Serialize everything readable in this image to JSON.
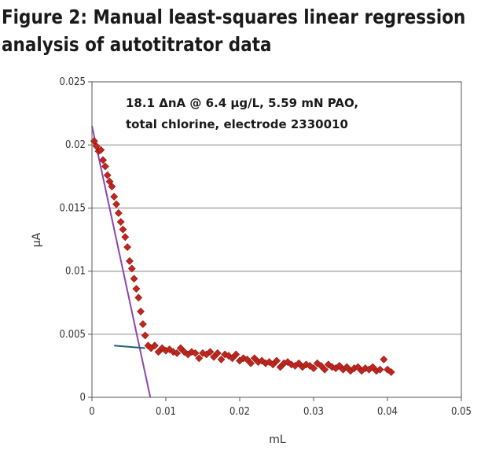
{
  "figure": {
    "title_line1": "Figure 2: Manual least-squares linear regression",
    "title_line2": "analysis of autotitrator data"
  },
  "chart_data": {
    "type": "scatter",
    "xlabel": "mL",
    "ylabel": "µA",
    "xlim": [
      0,
      0.05
    ],
    "ylim": [
      0,
      0.025
    ],
    "x_ticks": [
      "0",
      "0.01",
      "0.02",
      "0.03",
      "0.04",
      "0.05"
    ],
    "y_ticks": [
      "0",
      "0.005",
      "0.01",
      "0.015",
      "0.02",
      "0.025"
    ],
    "grid": "horizontal",
    "annotation_line1": "18.1 ΔnA @ 6.4 µg/L, 5.59 mN PAO,",
    "annotation_line2": "total chlorine, electrode 2330010",
    "colors": {
      "points": "#c0261e",
      "steep_fit": "#8e44ad",
      "flat_fit": "#1f5f7a",
      "grid": "#9a9a9a"
    },
    "series": [
      {
        "kind": "points",
        "x": [
          0.0003,
          0.0006,
          0.0009,
          0.0012,
          0.0015,
          0.0018,
          0.0021,
          0.0024,
          0.0027,
          0.003,
          0.0033,
          0.0036,
          0.0039,
          0.0042,
          0.0045,
          0.0048,
          0.0051,
          0.0054,
          0.0057,
          0.006,
          0.0063,
          0.0066,
          0.0069,
          0.0072,
          0.0076,
          0.008,
          0.0085,
          0.009,
          0.0095,
          0.01,
          0.0105,
          0.011,
          0.0115,
          0.012,
          0.0125,
          0.013,
          0.0135,
          0.014,
          0.0145,
          0.015,
          0.0155,
          0.016,
          0.0165,
          0.017,
          0.0175,
          0.018,
          0.0185,
          0.019,
          0.0195,
          0.02,
          0.0205,
          0.021,
          0.0215,
          0.022,
          0.0225,
          0.023,
          0.0235,
          0.024,
          0.0245,
          0.025,
          0.0255,
          0.026,
          0.0265,
          0.027,
          0.0275,
          0.028,
          0.0285,
          0.029,
          0.0295,
          0.03,
          0.0305,
          0.031,
          0.0315,
          0.032,
          0.0325,
          0.033,
          0.0335,
          0.034,
          0.0345,
          0.035,
          0.0355,
          0.036,
          0.0365,
          0.037,
          0.0375,
          0.038,
          0.0385,
          0.039,
          0.0395,
          0.04,
          0.0405
        ],
        "y": [
          0.0203,
          0.0199,
          0.0195,
          0.0196,
          0.0188,
          0.0183,
          0.0176,
          0.0171,
          0.0167,
          0.0159,
          0.0153,
          0.0146,
          0.0139,
          0.0133,
          0.0127,
          0.0119,
          0.0108,
          0.0102,
          0.0094,
          0.0086,
          0.0079,
          0.0068,
          0.0058,
          0.0049,
          0.0041,
          0.0039,
          0.0041,
          0.0036,
          0.0039,
          0.0037,
          0.0038,
          0.0036,
          0.0035,
          0.0039,
          0.0036,
          0.0034,
          0.0036,
          0.0035,
          0.0031,
          0.0035,
          0.0034,
          0.0036,
          0.0032,
          0.0035,
          0.003,
          0.0034,
          0.0033,
          0.0031,
          0.0034,
          0.0029,
          0.0031,
          0.003,
          0.0027,
          0.0031,
          0.0028,
          0.0029,
          0.0027,
          0.0028,
          0.0026,
          0.0029,
          0.0024,
          0.0027,
          0.0028,
          0.0026,
          0.0025,
          0.0027,
          0.0024,
          0.0026,
          0.0025,
          0.0023,
          0.0027,
          0.0025,
          0.0022,
          0.0026,
          0.0024,
          0.0023,
          0.0025,
          0.0022,
          0.0024,
          0.0021,
          0.0023,
          0.0024,
          0.0021,
          0.0023,
          0.0022,
          0.0024,
          0.0021,
          0.0022,
          0.003,
          0.0022,
          0.002
        ]
      },
      {
        "kind": "fit",
        "name": "steep",
        "x": [
          0,
          0.0079
        ],
        "y": [
          0.0215,
          0
        ]
      },
      {
        "kind": "fit",
        "name": "flat",
        "x": [
          0.003,
          0.0072
        ],
        "y": [
          0.0041,
          0.0039
        ]
      }
    ]
  }
}
